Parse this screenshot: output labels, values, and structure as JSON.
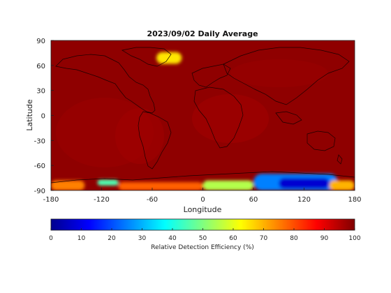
{
  "title": "2023/09/02 Daily Average",
  "map": {
    "xlabel": "Longitude",
    "ylabel": "Latitude",
    "xlim": [
      -180,
      180
    ],
    "ylim": [
      -90,
      90
    ],
    "x_ticks": [
      -180,
      -120,
      -60,
      0,
      60,
      120,
      180
    ],
    "y_ticks": [
      90,
      60,
      30,
      0,
      -30,
      -60,
      -90
    ],
    "x_tick_labels": [
      "-180",
      "-120",
      "-60",
      "0",
      "60",
      "120",
      "180"
    ],
    "y_tick_labels": [
      "90",
      "60",
      "30",
      "0",
      "-30",
      "-60",
      "-90"
    ],
    "background_color": "#8f0000",
    "colormap": "jet"
  },
  "colorbar": {
    "label": "Relative Detection Efficiency (%)",
    "min": 0,
    "max": 100,
    "ticks": [
      0,
      10,
      20,
      30,
      40,
      50,
      60,
      70,
      80,
      90,
      100
    ],
    "tick_labels": [
      "0",
      "10",
      "20",
      "30",
      "40",
      "50",
      "60",
      "70",
      "80",
      "90",
      "100"
    ]
  },
  "chart_data": {
    "type": "heatmap",
    "x_range": [
      -180,
      180
    ],
    "y_range": [
      -90,
      90
    ],
    "value_range": [
      0,
      100
    ],
    "regions": [
      {
        "lon": [
          -180,
          180
        ],
        "lat": [
          -90,
          90
        ],
        "value": 97
      },
      {
        "lon": [
          -55,
          -25
        ],
        "lat": [
          62,
          76
        ],
        "value": 65
      },
      {
        "lon": [
          -180,
          -140
        ],
        "lat": [
          -90,
          -78
        ],
        "value": 75
      },
      {
        "lon": [
          -125,
          -100
        ],
        "lat": [
          -84,
          -77
        ],
        "value": 45
      },
      {
        "lon": [
          -100,
          0
        ],
        "lat": [
          -90,
          -80
        ],
        "value": 78
      },
      {
        "lon": [
          0,
          60
        ],
        "lat": [
          -90,
          -78
        ],
        "value": 55
      },
      {
        "lon": [
          60,
          160
        ],
        "lat": [
          -90,
          -70
        ],
        "value": 25
      },
      {
        "lon": [
          90,
          150
        ],
        "lat": [
          -88,
          -75
        ],
        "value": 8
      },
      {
        "lon": [
          150,
          180
        ],
        "lat": [
          -90,
          -78
        ],
        "value": 70
      }
    ]
  }
}
